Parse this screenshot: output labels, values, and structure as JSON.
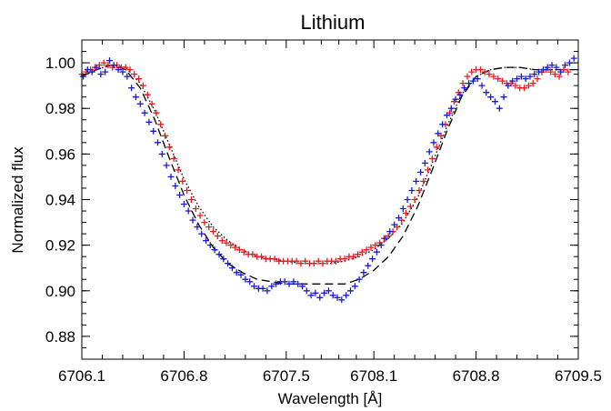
{
  "chart_data": {
    "type": "scatter",
    "title": "Lithium",
    "xlabel": "Wavelength [Å]",
    "ylabel": "Normalized flux",
    "xlim": [
      6706.1,
      6709.5
    ],
    "ylim": [
      0.87,
      1.01
    ],
    "x_ticks": [
      6706.1,
      6706.8,
      6707.5,
      6708.1,
      6708.8,
      6709.5
    ],
    "x_tick_labels": [
      "6706.1",
      "6706.8",
      "6707.5",
      "6708.1",
      "6708.8",
      "6709.5"
    ],
    "y_ticks": [
      0.88,
      0.9,
      0.92,
      0.94,
      0.96,
      0.98,
      1.0
    ],
    "y_tick_labels": [
      "0.88",
      "0.90",
      "0.92",
      "0.94",
      "0.96",
      "0.98",
      "1.00"
    ],
    "grid": false,
    "series": [
      {
        "type": "scatter",
        "color": "#e8191f",
        "marker": "plus",
        "points": [
          [
            6706.1,
            0.995
          ],
          [
            6706.13,
            0.996
          ],
          [
            6706.16,
            0.997
          ],
          [
            6706.19,
            0.998
          ],
          [
            6706.22,
            0.999
          ],
          [
            6706.25,
            1.0
          ],
          [
            6706.28,
            0.999
          ],
          [
            6706.31,
            0.998
          ],
          [
            6706.34,
            0.999
          ],
          [
            6706.37,
            0.998
          ],
          [
            6706.4,
            0.998
          ],
          [
            6706.43,
            0.997
          ],
          [
            6706.46,
            0.995
          ],
          [
            6706.49,
            0.993
          ],
          [
            6706.52,
            0.99
          ],
          [
            6706.55,
            0.986
          ],
          [
            6706.58,
            0.982
          ],
          [
            6706.61,
            0.978
          ],
          [
            6706.64,
            0.973
          ],
          [
            6706.67,
            0.968
          ],
          [
            6706.7,
            0.963
          ],
          [
            6706.73,
            0.958
          ],
          [
            6706.76,
            0.953
          ],
          [
            6706.79,
            0.948
          ],
          [
            6706.82,
            0.944
          ],
          [
            6706.85,
            0.94
          ],
          [
            6706.88,
            0.936
          ],
          [
            6706.91,
            0.933
          ],
          [
            6706.94,
            0.93
          ],
          [
            6706.97,
            0.928
          ],
          [
            6707.0,
            0.926
          ],
          [
            6707.03,
            0.924
          ],
          [
            6707.06,
            0.922
          ],
          [
            6707.09,
            0.921
          ],
          [
            6707.12,
            0.92
          ],
          [
            6707.15,
            0.919
          ],
          [
            6707.18,
            0.918
          ],
          [
            6707.21,
            0.917
          ],
          [
            6707.24,
            0.916
          ],
          [
            6707.27,
            0.916
          ],
          [
            6707.3,
            0.915
          ],
          [
            6707.33,
            0.915
          ],
          [
            6707.36,
            0.914
          ],
          [
            6707.39,
            0.914
          ],
          [
            6707.42,
            0.914
          ],
          [
            6707.45,
            0.913
          ],
          [
            6707.48,
            0.913
          ],
          [
            6707.51,
            0.913
          ],
          [
            6707.54,
            0.913
          ],
          [
            6707.57,
            0.913
          ],
          [
            6707.6,
            0.912
          ],
          [
            6707.63,
            0.913
          ],
          [
            6707.66,
            0.912
          ],
          [
            6707.69,
            0.912
          ],
          [
            6707.72,
            0.913
          ],
          [
            6707.75,
            0.912
          ],
          [
            6707.78,
            0.913
          ],
          [
            6707.81,
            0.913
          ],
          [
            6707.84,
            0.913
          ],
          [
            6707.87,
            0.914
          ],
          [
            6707.9,
            0.914
          ],
          [
            6707.93,
            0.915
          ],
          [
            6707.96,
            0.915
          ],
          [
            6707.99,
            0.916
          ],
          [
            6708.02,
            0.917
          ],
          [
            6708.05,
            0.918
          ],
          [
            6708.08,
            0.919
          ],
          [
            6708.11,
            0.92
          ],
          [
            6708.14,
            0.921
          ],
          [
            6708.17,
            0.923
          ],
          [
            6708.2,
            0.924
          ],
          [
            6708.23,
            0.926
          ],
          [
            6708.26,
            0.928
          ],
          [
            6708.29,
            0.931
          ],
          [
            6708.32,
            0.934
          ],
          [
            6708.35,
            0.937
          ],
          [
            6708.38,
            0.94
          ],
          [
            6708.41,
            0.944
          ],
          [
            6708.44,
            0.948
          ],
          [
            6708.47,
            0.953
          ],
          [
            6708.5,
            0.958
          ],
          [
            6708.53,
            0.963
          ],
          [
            6708.56,
            0.968
          ],
          [
            6708.59,
            0.973
          ],
          [
            6708.62,
            0.978
          ],
          [
            6708.65,
            0.983
          ],
          [
            6708.68,
            0.987
          ],
          [
            6708.71,
            0.991
          ],
          [
            6708.74,
            0.994
          ],
          [
            6708.77,
            0.996
          ],
          [
            6708.8,
            0.997
          ],
          [
            6708.83,
            0.997
          ],
          [
            6708.86,
            0.996
          ],
          [
            6708.89,
            0.995
          ],
          [
            6708.92,
            0.994
          ],
          [
            6708.95,
            0.993
          ],
          [
            6708.98,
            0.992
          ],
          [
            6709.01,
            0.991
          ],
          [
            6709.04,
            0.991
          ],
          [
            6709.07,
            0.99
          ],
          [
            6709.1,
            0.989
          ],
          [
            6709.13,
            0.989
          ],
          [
            6709.16,
            0.99
          ],
          [
            6709.19,
            0.991
          ],
          [
            6709.22,
            0.993
          ],
          [
            6709.25,
            0.996
          ],
          [
            6709.28,
            0.997
          ],
          [
            6709.31,
            0.996
          ],
          [
            6709.34,
            0.995
          ],
          [
            6709.37,
            0.994
          ],
          [
            6709.4,
            0.997
          ],
          [
            6709.43,
            0.996
          ]
        ]
      },
      {
        "type": "scatter",
        "color": "#1a1ad6",
        "marker": "plus",
        "points": [
          [
            6706.11,
            0.994
          ],
          [
            6706.14,
            0.997
          ],
          [
            6706.17,
            0.996
          ],
          [
            6706.2,
            0.998
          ],
          [
            6706.23,
            0.995
          ],
          [
            6706.26,
            0.996
          ],
          [
            6706.29,
            1.001
          ],
          [
            6706.32,
            0.999
          ],
          [
            6706.35,
            0.997
          ],
          [
            6706.38,
            0.996
          ],
          [
            6706.41,
            0.994
          ],
          [
            6706.44,
            0.989
          ],
          [
            6706.47,
            0.985
          ],
          [
            6706.5,
            0.982
          ],
          [
            6706.53,
            0.978
          ],
          [
            6706.56,
            0.974
          ],
          [
            6706.59,
            0.97
          ],
          [
            6706.62,
            0.965
          ],
          [
            6706.65,
            0.96
          ],
          [
            6706.68,
            0.955
          ],
          [
            6706.71,
            0.95
          ],
          [
            6706.74,
            0.946
          ],
          [
            6706.77,
            0.942
          ],
          [
            6706.8,
            0.938
          ],
          [
            6706.83,
            0.935
          ],
          [
            6706.86,
            0.931
          ],
          [
            6706.89,
            0.928
          ],
          [
            6706.92,
            0.925
          ],
          [
            6706.95,
            0.922
          ],
          [
            6706.98,
            0.92
          ],
          [
            6707.01,
            0.918
          ],
          [
            6707.04,
            0.916
          ],
          [
            6707.07,
            0.914
          ],
          [
            6707.1,
            0.912
          ],
          [
            6707.13,
            0.91
          ],
          [
            6707.16,
            0.908
          ],
          [
            6707.19,
            0.907
          ],
          [
            6707.22,
            0.905
          ],
          [
            6707.25,
            0.904
          ],
          [
            6707.28,
            0.902
          ],
          [
            6707.31,
            0.901
          ],
          [
            6707.34,
            0.901
          ],
          [
            6707.37,
            0.9
          ],
          [
            6707.4,
            0.902
          ],
          [
            6707.43,
            0.903
          ],
          [
            6707.46,
            0.904
          ],
          [
            6707.49,
            0.904
          ],
          [
            6707.52,
            0.903
          ],
          [
            6707.55,
            0.904
          ],
          [
            6707.58,
            0.903
          ],
          [
            6707.61,
            0.902
          ],
          [
            6707.64,
            0.9
          ],
          [
            6707.67,
            0.898
          ],
          [
            6707.7,
            0.899
          ],
          [
            6707.73,
            0.897
          ],
          [
            6707.76,
            0.899
          ],
          [
            6707.79,
            0.9
          ],
          [
            6707.82,
            0.898
          ],
          [
            6707.85,
            0.897
          ],
          [
            6707.88,
            0.896
          ],
          [
            6707.91,
            0.898
          ],
          [
            6707.94,
            0.9
          ],
          [
            6707.97,
            0.902
          ],
          [
            6708.0,
            0.905
          ],
          [
            6708.03,
            0.908
          ],
          [
            6708.06,
            0.911
          ],
          [
            6708.09,
            0.914
          ],
          [
            6708.12,
            0.917
          ],
          [
            6708.15,
            0.92
          ],
          [
            6708.18,
            0.923
          ],
          [
            6708.21,
            0.926
          ],
          [
            6708.24,
            0.929
          ],
          [
            6708.27,
            0.932
          ],
          [
            6708.3,
            0.936
          ],
          [
            6708.33,
            0.94
          ],
          [
            6708.36,
            0.944
          ],
          [
            6708.39,
            0.948
          ],
          [
            6708.42,
            0.952
          ],
          [
            6708.45,
            0.956
          ],
          [
            6708.48,
            0.961
          ],
          [
            6708.51,
            0.965
          ],
          [
            6708.54,
            0.969
          ],
          [
            6708.57,
            0.973
          ],
          [
            6708.6,
            0.977
          ],
          [
            6708.63,
            0.98
          ],
          [
            6708.66,
            0.984
          ],
          [
            6708.69,
            0.986
          ],
          [
            6708.72,
            0.989
          ],
          [
            6708.75,
            0.991
          ],
          [
            6708.78,
            0.992
          ],
          [
            6708.81,
            0.993
          ],
          [
            6708.84,
            0.99
          ],
          [
            6708.87,
            0.987
          ],
          [
            6708.9,
            0.985
          ],
          [
            6708.93,
            0.983
          ],
          [
            6708.96,
            0.98
          ],
          [
            6708.99,
            0.985
          ],
          [
            6709.02,
            0.99
          ],
          [
            6709.05,
            0.992
          ],
          [
            6709.08,
            0.993
          ],
          [
            6709.11,
            0.994
          ],
          [
            6709.14,
            0.993
          ],
          [
            6709.17,
            0.994
          ],
          [
            6709.2,
            0.995
          ],
          [
            6709.23,
            0.996
          ],
          [
            6709.26,
            0.997
          ],
          [
            6709.29,
            0.998
          ],
          [
            6709.32,
            0.999
          ],
          [
            6709.35,
            0.998
          ],
          [
            6709.38,
            0.996
          ],
          [
            6709.41,
            0.999
          ],
          [
            6709.44,
            1.0
          ],
          [
            6709.47,
            1.002
          ]
        ]
      },
      {
        "type": "line",
        "color": "#000000",
        "style": "dotted",
        "points": [
          [
            6706.1,
            0.994
          ],
          [
            6706.2,
            0.997
          ],
          [
            6706.3,
            0.999
          ],
          [
            6706.4,
            0.998
          ],
          [
            6706.5,
            0.991
          ],
          [
            6706.6,
            0.979
          ],
          [
            6706.7,
            0.964
          ],
          [
            6706.8,
            0.949
          ],
          [
            6706.9,
            0.937
          ],
          [
            6707.0,
            0.928
          ],
          [
            6707.1,
            0.922
          ],
          [
            6707.2,
            0.918
          ],
          [
            6707.3,
            0.915
          ],
          [
            6707.4,
            0.914
          ],
          [
            6707.5,
            0.913
          ],
          [
            6707.6,
            0.912
          ],
          [
            6707.7,
            0.912
          ],
          [
            6707.8,
            0.912
          ],
          [
            6707.9,
            0.913
          ],
          [
            6708.0,
            0.915
          ],
          [
            6708.1,
            0.918
          ],
          [
            6708.2,
            0.923
          ],
          [
            6708.3,
            0.93
          ],
          [
            6708.4,
            0.941
          ],
          [
            6708.5,
            0.956
          ],
          [
            6708.6,
            0.972
          ],
          [
            6708.7,
            0.986
          ],
          [
            6708.8,
            0.994
          ],
          [
            6708.9,
            0.997
          ],
          [
            6709.0,
            0.998
          ],
          [
            6709.1,
            0.998
          ],
          [
            6709.2,
            0.997
          ],
          [
            6709.3,
            0.997
          ],
          [
            6709.4,
            0.997
          ],
          [
            6709.5,
            0.997
          ]
        ]
      },
      {
        "type": "line",
        "color": "#000000",
        "style": "dashed",
        "points": [
          [
            6706.1,
            0.994
          ],
          [
            6706.2,
            0.997
          ],
          [
            6706.3,
            0.999
          ],
          [
            6706.4,
            0.997
          ],
          [
            6706.5,
            0.989
          ],
          [
            6706.6,
            0.975
          ],
          [
            6706.7,
            0.958
          ],
          [
            6706.8,
            0.942
          ],
          [
            6706.9,
            0.929
          ],
          [
            6707.0,
            0.919
          ],
          [
            6707.1,
            0.912
          ],
          [
            6707.2,
            0.908
          ],
          [
            6707.3,
            0.905
          ],
          [
            6707.4,
            0.904
          ],
          [
            6707.5,
            0.903
          ],
          [
            6707.6,
            0.903
          ],
          [
            6707.7,
            0.903
          ],
          [
            6707.8,
            0.903
          ],
          [
            6707.9,
            0.903
          ],
          [
            6708.0,
            0.905
          ],
          [
            6708.1,
            0.909
          ],
          [
            6708.2,
            0.915
          ],
          [
            6708.3,
            0.924
          ],
          [
            6708.4,
            0.937
          ],
          [
            6708.5,
            0.953
          ],
          [
            6708.6,
            0.97
          ],
          [
            6708.7,
            0.985
          ],
          [
            6708.8,
            0.994
          ],
          [
            6708.9,
            0.997
          ],
          [
            6709.0,
            0.998
          ],
          [
            6709.1,
            0.998
          ],
          [
            6709.2,
            0.997
          ],
          [
            6709.3,
            0.997
          ],
          [
            6709.4,
            0.997
          ],
          [
            6709.5,
            0.997
          ]
        ]
      }
    ]
  }
}
